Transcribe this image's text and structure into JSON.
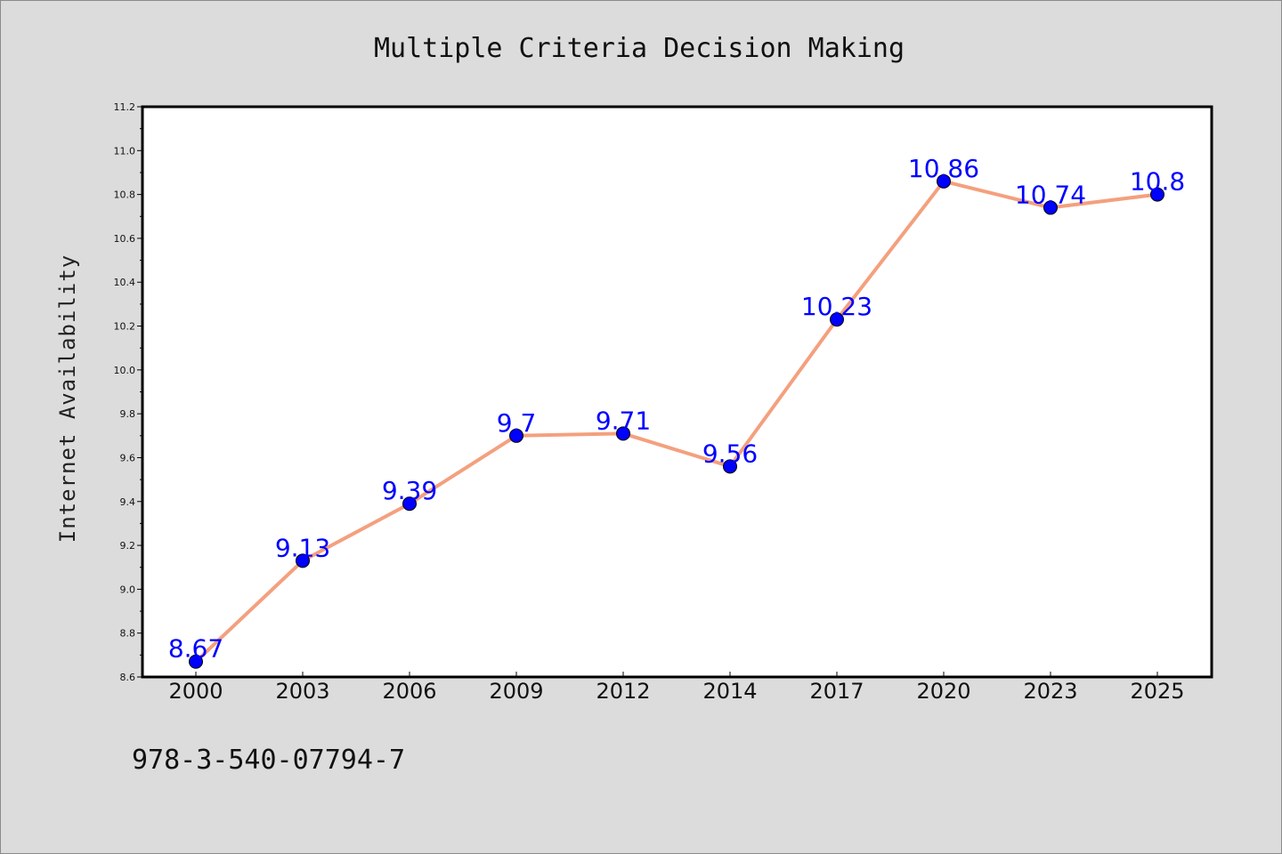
{
  "chart_data": {
    "type": "line",
    "title": "Multiple Criteria Decision Making",
    "xlabel": "",
    "ylabel": "Internet Availability",
    "categories": [
      "2000",
      "2003",
      "2006",
      "2009",
      "2012",
      "2014",
      "2017",
      "2020",
      "2023",
      "2025"
    ],
    "series": [
      {
        "values": [
          8.67,
          9.13,
          9.39,
          9.7,
          9.71,
          9.56,
          10.23,
          10.86,
          10.74,
          10.8
        ]
      }
    ],
    "data_labels": [
      "8.67",
      "9.13",
      "9.39",
      "9.7",
      "9.71",
      "9.56",
      "10.23",
      "10.86",
      "10.74",
      "10.8"
    ],
    "ylim": [
      8.6,
      11.2
    ],
    "yticks": [
      "8.6",
      "8.8",
      "9.0",
      "9.2",
      "9.4",
      "9.6",
      "9.8",
      "10.0",
      "10.2",
      "10.4",
      "10.6",
      "10.8",
      "11.0",
      "11.2"
    ],
    "grid": false,
    "legend": "none",
    "colors": {
      "line": "#f4a07e",
      "marker": "#0000ff",
      "data_label": "#0000ff",
      "background": "#dcdcdc",
      "plot_background": "#ffffff"
    }
  },
  "footer": {
    "isbn": "978-3-540-07794-7"
  }
}
